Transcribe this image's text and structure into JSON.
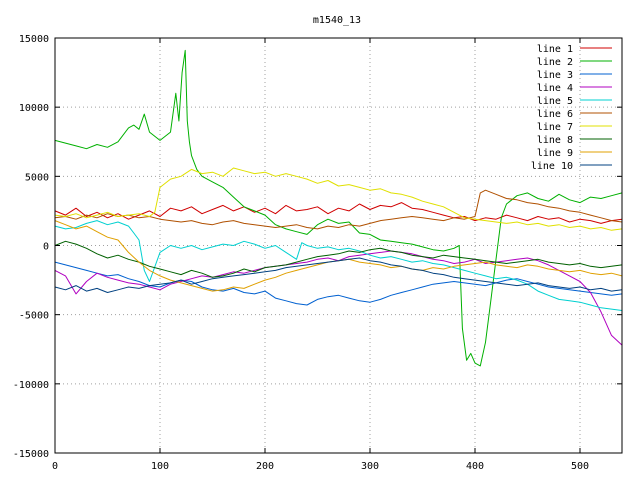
{
  "chart_data": {
    "type": "line",
    "title": "m1540_13",
    "xlabel": "",
    "ylabel": "",
    "xlim": [
      0,
      540
    ],
    "ylim": [
      -15000,
      15000
    ],
    "xticks": [
      0,
      100,
      200,
      300,
      400,
      500
    ],
    "yticks": [
      -15000,
      -10000,
      -5000,
      0,
      5000,
      10000,
      15000
    ],
    "grid": true,
    "legend_position": "top-right",
    "series": [
      {
        "name": "line 1",
        "color": "#d00000",
        "x": [
          0,
          10,
          20,
          30,
          40,
          50,
          60,
          70,
          80,
          90,
          100,
          110,
          120,
          130,
          140,
          150,
          160,
          170,
          180,
          190,
          200,
          210,
          220,
          230,
          240,
          250,
          260,
          270,
          280,
          290,
          300,
          310,
          320,
          330,
          340,
          350,
          360,
          370,
          380,
          390,
          400,
          410,
          420,
          430,
          440,
          450,
          460,
          470,
          480,
          490,
          500,
          510,
          520,
          530,
          540
        ],
        "y": [
          2500,
          2200,
          2700,
          2100,
          2400,
          2000,
          2300,
          1900,
          2200,
          2500,
          2100,
          2700,
          2500,
          2800,
          2300,
          2600,
          2900,
          2500,
          2800,
          2400,
          2700,
          2300,
          2900,
          2500,
          2600,
          2800,
          2300,
          2700,
          2500,
          3000,
          2600,
          2900,
          2800,
          3100,
          2700,
          2600,
          2400,
          2200,
          2000,
          2100,
          1800,
          2000,
          1900,
          2200,
          2000,
          1800,
          2100,
          1900,
          2000,
          1700,
          1900,
          1800,
          1600,
          1800,
          1900
        ]
      },
      {
        "name": "line 2",
        "color": "#00b000",
        "x": [
          0,
          10,
          20,
          30,
          40,
          50,
          60,
          70,
          75,
          80,
          85,
          90,
          100,
          110,
          115,
          118,
          121,
          124,
          126,
          128,
          130,
          135,
          140,
          150,
          160,
          170,
          180,
          190,
          200,
          210,
          220,
          230,
          240,
          250,
          260,
          270,
          280,
          290,
          300,
          310,
          320,
          330,
          340,
          350,
          360,
          370,
          380,
          385,
          388,
          392,
          396,
          400,
          405,
          410,
          415,
          420,
          425,
          430,
          435,
          440,
          450,
          460,
          470,
          480,
          490,
          500,
          510,
          520,
          530,
          540
        ],
        "y": [
          7600,
          7400,
          7200,
          7000,
          7300,
          7100,
          7500,
          8500,
          8700,
          8400,
          9500,
          8200,
          7600,
          8200,
          11000,
          9000,
          12500,
          14100,
          9000,
          7500,
          6500,
          5500,
          5000,
          4600,
          4200,
          3500,
          2800,
          2500,
          2200,
          1500,
          1200,
          1000,
          800,
          1500,
          1900,
          1600,
          1700,
          900,
          800,
          400,
          300,
          200,
          100,
          -100,
          -300,
          -400,
          -200,
          0,
          -6000,
          -8300,
          -7800,
          -8500,
          -8700,
          -7000,
          -4000,
          -1000,
          2000,
          3000,
          3300,
          3600,
          3800,
          3400,
          3200,
          3700,
          3300,
          3100,
          3500,
          3400,
          3600,
          3800
        ]
      },
      {
        "name": "line 3",
        "color": "#0060d0",
        "x": [
          0,
          10,
          20,
          30,
          40,
          50,
          60,
          70,
          80,
          90,
          100,
          110,
          120,
          130,
          140,
          150,
          160,
          170,
          180,
          190,
          200,
          210,
          220,
          230,
          240,
          250,
          260,
          270,
          280,
          290,
          300,
          310,
          320,
          330,
          340,
          350,
          360,
          370,
          380,
          390,
          400,
          410,
          420,
          430,
          440,
          450,
          460,
          470,
          480,
          490,
          500,
          510,
          520,
          530,
          540
        ],
        "y": [
          -1200,
          -1400,
          -1600,
          -1800,
          -2000,
          -2200,
          -2100,
          -2400,
          -2600,
          -2900,
          -3000,
          -2700,
          -2500,
          -2600,
          -3000,
          -3200,
          -3300,
          -3100,
          -3400,
          -3500,
          -3300,
          -3800,
          -4000,
          -4200,
          -4300,
          -3900,
          -3700,
          -3600,
          -3800,
          -4000,
          -4100,
          -3900,
          -3600,
          -3400,
          -3200,
          -3000,
          -2800,
          -2700,
          -2600,
          -2700,
          -2800,
          -2900,
          -2700,
          -2500,
          -2400,
          -2600,
          -2800,
          -3000,
          -3100,
          -3200,
          -3300,
          -3400,
          -3500,
          -3600,
          -3500
        ]
      },
      {
        "name": "line 4",
        "color": "#b000c0",
        "x": [
          0,
          10,
          20,
          30,
          40,
          50,
          60,
          70,
          80,
          90,
          100,
          110,
          120,
          130,
          140,
          150,
          160,
          170,
          180,
          190,
          200,
          210,
          220,
          230,
          240,
          250,
          260,
          270,
          280,
          290,
          300,
          310,
          320,
          330,
          340,
          350,
          360,
          370,
          380,
          390,
          400,
          410,
          420,
          430,
          440,
          450,
          460,
          470,
          480,
          490,
          500,
          510,
          520,
          530,
          540
        ],
        "y": [
          -1800,
          -2200,
          -3500,
          -2600,
          -2000,
          -2300,
          -2500,
          -2700,
          -2800,
          -3000,
          -3200,
          -2800,
          -2600,
          -2400,
          -2200,
          -2300,
          -2100,
          -1900,
          -2000,
          -1800,
          -1600,
          -1500,
          -1400,
          -1300,
          -1200,
          -1000,
          -900,
          -1100,
          -800,
          -700,
          -600,
          -500,
          -400,
          -500,
          -600,
          -800,
          -1000,
          -1100,
          -1300,
          -1200,
          -1000,
          -1300,
          -1200,
          -1100,
          -1000,
          -900,
          -1100,
          -1400,
          -1800,
          -2200,
          -2600,
          -3400,
          -4800,
          -6500,
          -7200
        ]
      },
      {
        "name": "line 5",
        "color": "#00d0d0",
        "x": [
          0,
          10,
          20,
          30,
          40,
          50,
          60,
          70,
          75,
          80,
          85,
          90,
          100,
          110,
          120,
          130,
          140,
          150,
          160,
          170,
          180,
          190,
          200,
          210,
          220,
          230,
          235,
          240,
          250,
          260,
          270,
          280,
          290,
          300,
          310,
          320,
          330,
          340,
          350,
          360,
          370,
          380,
          390,
          400,
          410,
          420,
          430,
          440,
          450,
          460,
          470,
          480,
          490,
          500,
          510,
          520,
          530,
          540
        ],
        "y": [
          1400,
          1200,
          1300,
          1600,
          1800,
          1500,
          1700,
          1400,
          900,
          400,
          -1800,
          -2600,
          -500,
          0,
          -200,
          0,
          -300,
          -100,
          100,
          0,
          300,
          100,
          -200,
          0,
          -500,
          -1000,
          200,
          0,
          -200,
          -100,
          -300,
          -200,
          -400,
          -700,
          -900,
          -800,
          -1000,
          -1200,
          -1100,
          -1300,
          -1400,
          -1600,
          -1800,
          -2000,
          -2200,
          -2400,
          -2300,
          -2500,
          -2800,
          -3300,
          -3600,
          -3900,
          -4000,
          -4100,
          -4300,
          -4500,
          -4600,
          -4700
        ]
      },
      {
        "name": "line 6",
        "color": "#b05000",
        "x": [
          0,
          10,
          20,
          30,
          40,
          50,
          60,
          70,
          80,
          90,
          100,
          110,
          120,
          130,
          140,
          150,
          160,
          170,
          180,
          190,
          200,
          210,
          220,
          230,
          240,
          250,
          260,
          270,
          280,
          290,
          300,
          310,
          320,
          330,
          340,
          350,
          360,
          370,
          380,
          390,
          400,
          405,
          410,
          420,
          430,
          440,
          450,
          460,
          470,
          480,
          490,
          500,
          510,
          520,
          530,
          540
        ],
        "y": [
          2000,
          2100,
          1900,
          2200,
          2000,
          2300,
          2100,
          2200,
          2000,
          2100,
          1900,
          1800,
          1700,
          1800,
          1600,
          1500,
          1700,
          1800,
          1600,
          1500,
          1400,
          1300,
          1400,
          1500,
          1300,
          1200,
          1400,
          1300,
          1500,
          1400,
          1600,
          1800,
          1900,
          2000,
          2100,
          2000,
          1900,
          1800,
          2000,
          1900,
          2100,
          3800,
          4000,
          3700,
          3400,
          3300,
          3100,
          3000,
          2800,
          2700,
          2500,
          2400,
          2200,
          2000,
          1800,
          1700
        ]
      },
      {
        "name": "line 7",
        "color": "#e0e000",
        "x": [
          0,
          10,
          20,
          30,
          40,
          50,
          60,
          70,
          80,
          90,
          95,
          100,
          110,
          120,
          130,
          140,
          150,
          160,
          170,
          180,
          190,
          200,
          210,
          220,
          230,
          240,
          250,
          260,
          270,
          280,
          290,
          300,
          310,
          320,
          330,
          340,
          350,
          360,
          370,
          380,
          390,
          400,
          410,
          420,
          430,
          440,
          450,
          460,
          470,
          480,
          490,
          500,
          510,
          520,
          530,
          540
        ],
        "y": [
          2200,
          2100,
          2300,
          2000,
          2200,
          2400,
          2100,
          2200,
          2300,
          2100,
          2400,
          4200,
          4800,
          5000,
          5500,
          5200,
          5300,
          5000,
          5600,
          5400,
          5200,
          5300,
          5000,
          5200,
          5000,
          4800,
          4500,
          4700,
          4300,
          4400,
          4200,
          4000,
          4100,
          3800,
          3700,
          3500,
          3200,
          3000,
          2800,
          2400,
          2000,
          1900,
          1800,
          1700,
          1600,
          1700,
          1500,
          1600,
          1400,
          1500,
          1300,
          1400,
          1200,
          1300,
          1100,
          1200
        ]
      },
      {
        "name": "line 8",
        "color": "#006000",
        "x": [
          0,
          10,
          20,
          30,
          40,
          50,
          60,
          70,
          80,
          90,
          100,
          110,
          120,
          130,
          140,
          150,
          160,
          170,
          180,
          190,
          200,
          210,
          220,
          230,
          240,
          250,
          260,
          270,
          280,
          290,
          300,
          310,
          320,
          330,
          340,
          350,
          360,
          370,
          380,
          390,
          400,
          410,
          420,
          430,
          440,
          450,
          460,
          470,
          480,
          490,
          500,
          510,
          520,
          530,
          540
        ],
        "y": [
          0,
          300,
          100,
          -200,
          -600,
          -900,
          -700,
          -1000,
          -1200,
          -1500,
          -1700,
          -1900,
          -2100,
          -1800,
          -2000,
          -2300,
          -2200,
          -2000,
          -1700,
          -1900,
          -1600,
          -1500,
          -1400,
          -1200,
          -1000,
          -800,
          -700,
          -600,
          -400,
          -500,
          -300,
          -200,
          -400,
          -500,
          -700,
          -800,
          -900,
          -700,
          -800,
          -900,
          -1000,
          -1100,
          -1200,
          -1300,
          -1200,
          -1100,
          -1000,
          -1200,
          -1300,
          -1400,
          -1300,
          -1500,
          -1600,
          -1500,
          -1400
        ]
      },
      {
        "name": "line 9",
        "color": "#e0a000",
        "x": [
          0,
          10,
          20,
          30,
          40,
          50,
          60,
          70,
          80,
          90,
          100,
          110,
          120,
          130,
          140,
          150,
          160,
          170,
          180,
          190,
          200,
          210,
          220,
          230,
          240,
          250,
          260,
          270,
          280,
          290,
          300,
          310,
          320,
          330,
          340,
          350,
          360,
          370,
          380,
          390,
          400,
          410,
          420,
          430,
          440,
          450,
          460,
          470,
          480,
          490,
          500,
          510,
          520,
          530,
          540
        ],
        "y": [
          1800,
          1500,
          1200,
          1400,
          1000,
          600,
          400,
          -500,
          -1200,
          -1800,
          -2200,
          -2500,
          -2700,
          -2900,
          -3100,
          -3300,
          -3200,
          -3000,
          -3100,
          -2800,
          -2500,
          -2300,
          -2000,
          -1800,
          -1600,
          -1400,
          -1200,
          -1100,
          -1000,
          -1200,
          -1300,
          -1400,
          -1600,
          -1500,
          -1700,
          -1800,
          -1600,
          -1700,
          -1500,
          -1400,
          -1300,
          -1200,
          -1400,
          -1500,
          -1600,
          -1400,
          -1500,
          -1700,
          -1800,
          -1900,
          -1800,
          -2000,
          -2100,
          -2000,
          -2200
        ]
      },
      {
        "name": "line 10",
        "color": "#004080",
        "x": [
          0,
          10,
          20,
          30,
          40,
          50,
          60,
          70,
          80,
          90,
          100,
          110,
          120,
          130,
          140,
          150,
          160,
          170,
          180,
          190,
          200,
          210,
          220,
          230,
          240,
          250,
          260,
          270,
          280,
          290,
          300,
          310,
          320,
          330,
          340,
          350,
          360,
          370,
          380,
          390,
          400,
          410,
          420,
          430,
          440,
          450,
          460,
          470,
          480,
          490,
          500,
          510,
          520,
          530,
          540
        ],
        "y": [
          -3000,
          -3200,
          -2900,
          -3300,
          -3100,
          -3400,
          -3200,
          -3000,
          -3100,
          -2900,
          -2800,
          -2700,
          -2500,
          -2800,
          -2600,
          -2400,
          -2300,
          -2200,
          -2100,
          -2000,
          -1900,
          -1800,
          -1600,
          -1500,
          -1400,
          -1300,
          -1200,
          -1100,
          -1000,
          -900,
          -1100,
          -1200,
          -1400,
          -1500,
          -1700,
          -1800,
          -2000,
          -2100,
          -2300,
          -2400,
          -2500,
          -2600,
          -2700,
          -2800,
          -2900,
          -2800,
          -2700,
          -2900,
          -3000,
          -3100,
          -3000,
          -3200,
          -3100,
          -3300,
          -3200
        ]
      }
    ]
  }
}
